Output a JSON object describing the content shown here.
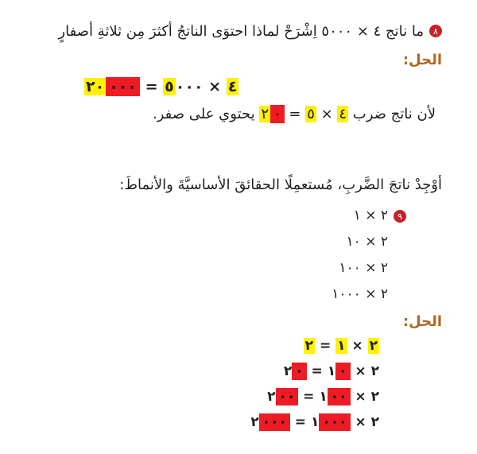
{
  "colors": {
    "text": "#231f20",
    "solution_label": "#b0681f",
    "badge_red": "#c5222b",
    "highlight_yellow": "#fff100",
    "highlight_red": "#ed1c24"
  },
  "q8": {
    "number": "٨",
    "question": "ما ناتج ٤ × ٥٠٠٠ اِشْرَحْ لماذا احتوَى الناتجُ أكثرَ مِن ثلاثةِ أصفارٍ",
    "solution_label": "الحل:",
    "equation": {
      "parts": [
        {
          "t": "٤",
          "h": "yellow"
        },
        {
          "t": " × ",
          "h": ""
        },
        {
          "t": "٥",
          "h": "yellow"
        },
        {
          "t": "٠٠٠",
          "h": ""
        },
        {
          "t": " = ",
          "h": ""
        },
        {
          "t": "٢٠",
          "h": "yellow"
        },
        {
          "t": "٠٠٠",
          "h": "red"
        }
      ]
    },
    "explanation": {
      "parts": [
        {
          "t": "لأن ناتج ضرب ",
          "h": ""
        },
        {
          "t": "٤",
          "h": "yellow"
        },
        {
          "t": " × ",
          "h": ""
        },
        {
          "t": "٥",
          "h": "yellow"
        },
        {
          "t": " = ",
          "h": ""
        },
        {
          "t": "٢",
          "h": "yellow"
        },
        {
          "t": "٠",
          "h": "red"
        },
        {
          "t": " يحتوي على صفر.",
          "h": ""
        }
      ]
    }
  },
  "q9": {
    "instruction": "أوْجِدْ ناتجَ الضَّربِ، مُستعمِلًا الحقائقَ الأساسيَّةَ والأنماطَ:",
    "number": "٩",
    "problems": [
      "٢ × ١",
      "٢ × ١٠",
      "٢ × ١٠٠",
      "٢ × ١٠٠٠"
    ],
    "solution_label": "الحل:",
    "solutions": [
      {
        "parts": [
          {
            "t": "٢",
            "h": "yellow"
          },
          {
            "t": " × ",
            "h": ""
          },
          {
            "t": "١",
            "h": "yellow"
          },
          {
            "t": " = ",
            "h": ""
          },
          {
            "t": "٢",
            "h": "yellow"
          }
        ]
      },
      {
        "parts": [
          {
            "t": "٢",
            "h": ""
          },
          {
            "t": " × ",
            "h": ""
          },
          {
            "t": "١",
            "h": ""
          },
          {
            "t": "٠",
            "h": "red"
          },
          {
            "t": " = ",
            "h": ""
          },
          {
            "t": "٢",
            "h": ""
          },
          {
            "t": "٠",
            "h": "red"
          }
        ]
      },
      {
        "parts": [
          {
            "t": "٢",
            "h": ""
          },
          {
            "t": " × ",
            "h": ""
          },
          {
            "t": "١",
            "h": ""
          },
          {
            "t": "٠٠",
            "h": "red"
          },
          {
            "t": " = ",
            "h": ""
          },
          {
            "t": "٢",
            "h": ""
          },
          {
            "t": "٠٠",
            "h": "red"
          }
        ]
      },
      {
        "parts": [
          {
            "t": "٢",
            "h": ""
          },
          {
            "t": " × ",
            "h": ""
          },
          {
            "t": "١",
            "h": ""
          },
          {
            "t": "٠٠٠",
            "h": "red"
          },
          {
            "t": " = ",
            "h": ""
          },
          {
            "t": "٢",
            "h": ""
          },
          {
            "t": "٠٠٠",
            "h": "red"
          }
        ]
      }
    ]
  }
}
